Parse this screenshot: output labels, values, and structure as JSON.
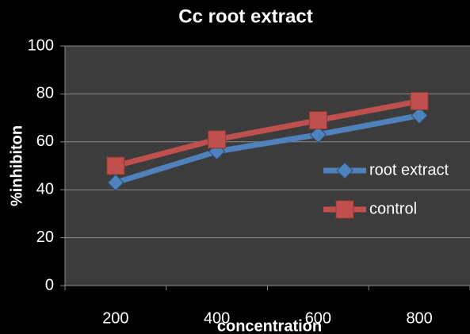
{
  "chart_data": {
    "type": "line",
    "title": "Cc root extract",
    "x_label": "concentration",
    "y_label": "%inhibiton",
    "categories": [
      "200",
      "400",
      "600",
      "800"
    ],
    "series": [
      {
        "name": "root extract",
        "color": "#4f81bd",
        "marker": "diamond",
        "values": [
          43,
          56,
          63,
          71
        ]
      },
      {
        "name": "control",
        "color": "#c0504d",
        "marker": "square",
        "values": [
          50,
          61,
          69,
          77
        ]
      }
    ],
    "ylim": [
      0,
      100
    ],
    "yticks": [
      0,
      20,
      40,
      60,
      80,
      100
    ],
    "grid": true,
    "legend": "right"
  }
}
